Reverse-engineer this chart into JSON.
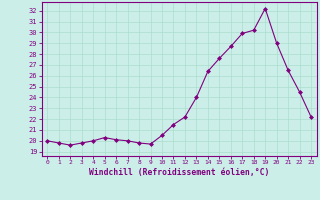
{
  "x": [
    0,
    1,
    2,
    3,
    4,
    5,
    6,
    7,
    8,
    9,
    10,
    11,
    12,
    13,
    14,
    15,
    16,
    17,
    18,
    19,
    20,
    21,
    22,
    23
  ],
  "y": [
    20.0,
    19.8,
    19.6,
    19.8,
    20.0,
    20.3,
    20.1,
    20.0,
    19.8,
    19.7,
    20.5,
    21.5,
    22.2,
    24.0,
    26.4,
    27.6,
    28.7,
    29.9,
    30.2,
    32.2,
    29.0,
    26.5,
    24.5,
    22.2
  ],
  "line_color": "#800080",
  "marker": "D",
  "marker_size": 2.0,
  "bg_color": "#cceee8",
  "grid_color": "#aaddcc",
  "xlabel": "Windchill (Refroidissement éolien,°C)",
  "ylabel_ticks": [
    19,
    20,
    21,
    22,
    23,
    24,
    25,
    26,
    27,
    28,
    29,
    30,
    31,
    32
  ],
  "ylim": [
    18.6,
    32.8
  ],
  "xlim": [
    -0.5,
    23.5
  ],
  "tick_label_color": "#800080",
  "xlabel_color": "#800080"
}
